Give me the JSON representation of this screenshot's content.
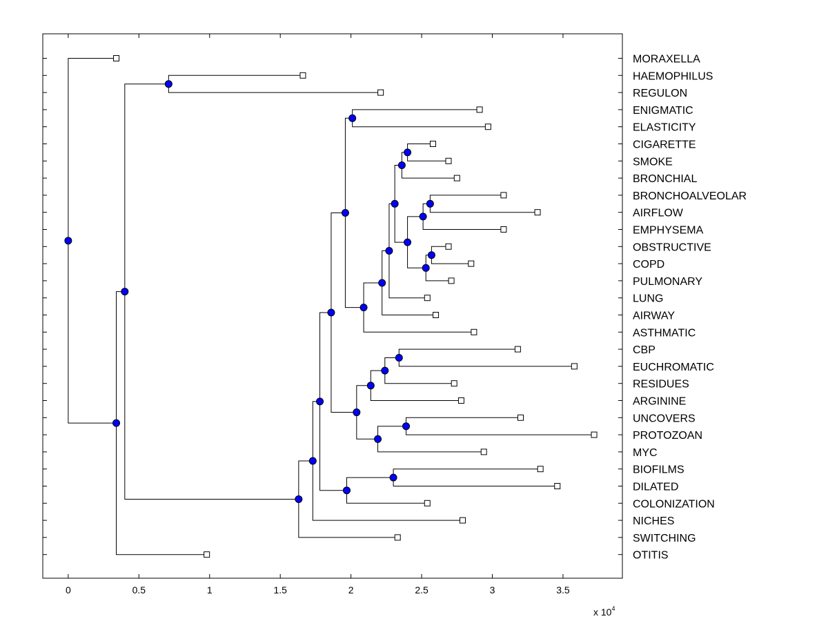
{
  "chart_data": {
    "type": "dendrogram",
    "orientation": "left-to-right",
    "x_axis": {
      "ticks": [
        0,
        0.5,
        1,
        1.5,
        2,
        2.5,
        3,
        3.5
      ],
      "tick_labels": [
        "0",
        "0.5",
        "1",
        "1.5",
        "2",
        "2.5",
        "3",
        "3.5"
      ],
      "xlim": [
        -0.18,
        3.92
      ],
      "multiplier_label": "x 10",
      "multiplier_exponent": "4"
    },
    "node_colors": {
      "internal": "#0000ff",
      "leaf": "#ffffff",
      "line": "#000000"
    },
    "leaves": [
      {
        "id": "MORAXELLA",
        "label": "MORAXELLA",
        "x": 0.34
      },
      {
        "id": "HAEMOPHILUS",
        "label": "HAEMOPHILUS",
        "x": 1.66
      },
      {
        "id": "REGULON",
        "label": "REGULON",
        "x": 2.21
      },
      {
        "id": "ENIGMATIC",
        "label": "ENIGMATIC",
        "x": 2.91
      },
      {
        "id": "ELASTICITY",
        "label": "ELASTICITY",
        "x": 2.97
      },
      {
        "id": "CIGARETTE",
        "label": "CIGARETTE",
        "x": 2.58
      },
      {
        "id": "SMOKE",
        "label": "SMOKE",
        "x": 2.69
      },
      {
        "id": "BRONCHIAL",
        "label": "BRONCHIAL",
        "x": 2.75
      },
      {
        "id": "BRONCHOALVEOLAR",
        "label": "BRONCHOALVEOLAR",
        "x": 3.08
      },
      {
        "id": "AIRFLOW",
        "label": "AIRFLOW",
        "x": 3.32
      },
      {
        "id": "EMPHYSEMA",
        "label": "EMPHYSEMA",
        "x": 3.08
      },
      {
        "id": "OBSTRUCTIVE",
        "label": "OBSTRUCTIVE",
        "x": 2.69
      },
      {
        "id": "COPD",
        "label": "COPD",
        "x": 2.85
      },
      {
        "id": "PULMONARY",
        "label": "PULMONARY",
        "x": 2.71
      },
      {
        "id": "LUNG",
        "label": "LUNG",
        "x": 2.54
      },
      {
        "id": "AIRWAY",
        "label": "AIRWAY",
        "x": 2.6
      },
      {
        "id": "ASTHMATIC",
        "label": "ASTHMATIC",
        "x": 2.87
      },
      {
        "id": "CBP",
        "label": "CBP",
        "x": 3.18
      },
      {
        "id": "EUCHROMATIC",
        "label": "EUCHROMATIC",
        "x": 3.58
      },
      {
        "id": "RESIDUES",
        "label": "RESIDUES",
        "x": 2.73
      },
      {
        "id": "ARGININE",
        "label": "ARGININE",
        "x": 2.78
      },
      {
        "id": "UNCOVERS",
        "label": "UNCOVERS",
        "x": 3.2
      },
      {
        "id": "PROTOZOAN",
        "label": "PROTOZOAN",
        "x": 3.72
      },
      {
        "id": "MYC",
        "label": "MYC",
        "x": 2.94
      },
      {
        "id": "BIOFILMS",
        "label": "BIOFILMS",
        "x": 3.34
      },
      {
        "id": "DILATED",
        "label": "DILATED",
        "x": 3.46
      },
      {
        "id": "COLONIZATION",
        "label": "COLONIZATION",
        "x": 2.54
      },
      {
        "id": "NICHES",
        "label": "NICHES",
        "x": 2.79
      },
      {
        "id": "SWITCHING",
        "label": "SWITCHING",
        "x": 2.33
      },
      {
        "id": "OTITIS",
        "label": "OTITIS",
        "x": 0.98
      }
    ],
    "merges": [
      {
        "id": "n_root",
        "x": 0.0,
        "children": [
          "MORAXELLA",
          "n_a"
        ]
      },
      {
        "id": "n_a",
        "x": 0.34,
        "children": [
          "n_b",
          "OTITIS"
        ]
      },
      {
        "id": "n_b",
        "x": 0.4,
        "children": [
          "n_hr",
          "n_c"
        ]
      },
      {
        "id": "n_hr",
        "x": 0.71,
        "children": [
          "HAEMOPHILUS",
          "REGULON"
        ]
      },
      {
        "id": "n_c",
        "x": 1.63,
        "children": [
          "n_d",
          "SWITCHING"
        ]
      },
      {
        "id": "n_d",
        "x": 1.73,
        "children": [
          "n_e",
          "NICHES"
        ]
      },
      {
        "id": "n_e",
        "x": 1.78,
        "children": [
          "n_f",
          "n_bdc"
        ]
      },
      {
        "id": "n_f",
        "x": 1.86,
        "children": [
          "n_g",
          "n_h"
        ]
      },
      {
        "id": "n_g",
        "x": 1.96,
        "children": [
          "n_ee",
          "n_i"
        ]
      },
      {
        "id": "n_ee",
        "x": 2.01,
        "children": [
          "ENIGMATIC",
          "ELASTICITY"
        ]
      },
      {
        "id": "n_i",
        "x": 2.09,
        "children": [
          "n_j",
          "ASTHMATIC"
        ]
      },
      {
        "id": "n_j",
        "x": 2.22,
        "children": [
          "n_k",
          "AIRWAY"
        ]
      },
      {
        "id": "n_k",
        "x": 2.27,
        "children": [
          "n_l",
          "LUNG"
        ]
      },
      {
        "id": "n_l",
        "x": 2.31,
        "children": [
          "n_m",
          "n_n"
        ]
      },
      {
        "id": "n_m",
        "x": 2.36,
        "children": [
          "n_cs",
          "BRONCHIAL"
        ]
      },
      {
        "id": "n_cs",
        "x": 2.4,
        "children": [
          "CIGARETTE",
          "SMOKE"
        ]
      },
      {
        "id": "n_n",
        "x": 2.4,
        "children": [
          "n_o",
          "n_p"
        ]
      },
      {
        "id": "n_o",
        "x": 2.51,
        "children": [
          "n_ba",
          "EMPHYSEMA"
        ]
      },
      {
        "id": "n_ba",
        "x": 2.56,
        "children": [
          "BRONCHOALVEOLAR",
          "AIRFLOW"
        ]
      },
      {
        "id": "n_p",
        "x": 2.53,
        "children": [
          "n_oc",
          "PULMONARY"
        ]
      },
      {
        "id": "n_oc",
        "x": 2.57,
        "children": [
          "OBSTRUCTIVE",
          "COPD"
        ]
      },
      {
        "id": "n_h",
        "x": 2.04,
        "children": [
          "n_q",
          "n_r"
        ]
      },
      {
        "id": "n_q",
        "x": 2.14,
        "children": [
          "n_s",
          "ARGININE"
        ]
      },
      {
        "id": "n_s",
        "x": 2.24,
        "children": [
          "n_ce",
          "RESIDUES"
        ]
      },
      {
        "id": "n_ce",
        "x": 2.34,
        "children": [
          "CBP",
          "EUCHROMATIC"
        ]
      },
      {
        "id": "n_r",
        "x": 2.19,
        "children": [
          "n_up",
          "MYC"
        ]
      },
      {
        "id": "n_up",
        "x": 2.39,
        "children": [
          "UNCOVERS",
          "PROTOZOAN"
        ]
      },
      {
        "id": "n_bdc",
        "x": 1.97,
        "children": [
          "n_bd",
          "COLONIZATION"
        ]
      },
      {
        "id": "n_bd",
        "x": 2.3,
        "children": [
          "BIOFILMS",
          "DILATED"
        ]
      }
    ]
  }
}
